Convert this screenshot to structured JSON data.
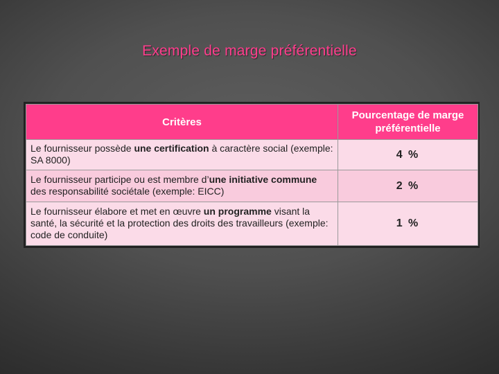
{
  "slide": {
    "title": "Exemple de marge préférentielle"
  },
  "table": {
    "headers": [
      "Critères",
      "Pourcentage de marge préférentielle"
    ],
    "rows": [
      {
        "criterion": {
          "before": "Le fournisseur possède ",
          "bold": "une certification",
          "after": " à caractère social (exemple: SA 8000)"
        },
        "value": "4 %"
      },
      {
        "criterion": {
          "before": "Le fournisseur participe ou est membre d’",
          "bold": "une initiative commune",
          "after": " des responsabilité sociétale (exemple: EICC)"
        },
        "value": "2 %"
      },
      {
        "criterion": {
          "before": "Le fournisseur élabore et met en œuvre ",
          "bold": "un programme",
          "after": " visant la santé, la sécurité et la protection des droits des travailleurs (exemple: code de conduite)"
        },
        "value": "1 %"
      }
    ]
  },
  "colors": {
    "title": "#ff3e8d",
    "header_bg": "#ff3d8b",
    "row_bg": "#fbdbe8",
    "row_alt_bg": "#f9cbdd",
    "background": "#505050"
  }
}
